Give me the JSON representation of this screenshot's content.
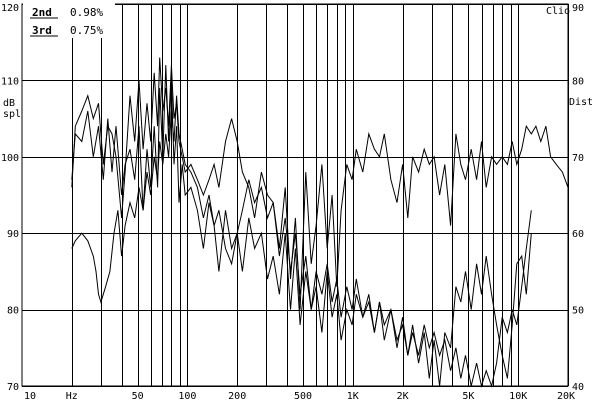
{
  "chart_data": {
    "type": "line",
    "title": "",
    "software_label": "Clio",
    "legend": [
      {
        "name": "2nd",
        "value": "0.98%"
      },
      {
        "name": "3rd",
        "value": "0.75%"
      }
    ],
    "left_axis": {
      "label_line1": "dB",
      "label_line2": "spl",
      "range": [
        70,
        120
      ],
      "ticks": [
        70,
        80,
        90,
        100,
        110,
        120
      ]
    },
    "right_axis": {
      "label": "Dist",
      "range": [
        40,
        90
      ],
      "ticks": [
        40,
        50,
        60,
        70,
        80,
        90
      ]
    },
    "x_axis": {
      "scale": "log",
      "unit": "Hz",
      "range": [
        10,
        20000
      ],
      "tick_labels": [
        {
          "f": 10,
          "t": "10"
        },
        {
          "f": 20,
          "t": "Hz"
        },
        {
          "f": 50,
          "t": "50"
        },
        {
          "f": 100,
          "t": "100"
        },
        {
          "f": 200,
          "t": "200"
        },
        {
          "f": 500,
          "t": "500"
        },
        {
          "f": 1000,
          "t": "1K"
        },
        {
          "f": 2000,
          "t": "2K"
        },
        {
          "f": 5000,
          "t": "5K"
        },
        {
          "f": 10000,
          "t": "10K"
        },
        {
          "f": 20000,
          "t": "20K"
        }
      ],
      "gridlines": [
        20,
        30,
        40,
        50,
        60,
        70,
        80,
        90,
        100,
        200,
        300,
        400,
        500,
        600,
        700,
        800,
        900,
        1000,
        2000,
        3000,
        4000,
        5000,
        6000,
        7000,
        8000,
        9000,
        10000,
        20000
      ]
    },
    "grid": true,
    "series": [
      {
        "axis": "left",
        "values": [
          [
            20,
            96
          ],
          [
            21,
            104
          ],
          [
            23,
            106
          ],
          [
            25,
            108
          ],
          [
            27,
            105
          ],
          [
            29,
            107
          ],
          [
            31,
            99
          ],
          [
            33,
            104
          ],
          [
            35,
            103
          ],
          [
            37,
            100
          ],
          [
            40,
            92
          ],
          [
            42,
            98
          ],
          [
            45,
            108
          ],
          [
            48,
            102
          ],
          [
            51,
            110
          ],
          [
            54,
            101
          ],
          [
            57,
            107
          ],
          [
            60,
            102
          ],
          [
            63,
            111
          ],
          [
            66,
            104
          ],
          [
            68,
            113
          ],
          [
            71,
            106
          ],
          [
            74,
            109
          ],
          [
            77,
            104
          ],
          [
            80,
            112
          ],
          [
            83,
            105
          ],
          [
            86,
            107
          ],
          [
            89,
            102
          ],
          [
            93,
            100
          ],
          [
            97,
            98
          ],
          [
            105,
            99
          ],
          [
            115,
            97
          ],
          [
            125,
            95
          ],
          [
            135,
            97
          ],
          [
            145,
            99
          ],
          [
            155,
            96
          ],
          [
            170,
            102
          ],
          [
            185,
            105
          ],
          [
            200,
            102
          ],
          [
            215,
            98
          ],
          [
            235,
            96
          ],
          [
            255,
            92
          ],
          [
            280,
            98
          ],
          [
            305,
            95
          ],
          [
            330,
            94
          ],
          [
            360,
            88
          ],
          [
            390,
            96
          ],
          [
            420,
            84
          ],
          [
            450,
            92
          ],
          [
            480,
            80
          ],
          [
            520,
            98
          ],
          [
            560,
            86
          ],
          [
            600,
            91
          ],
          [
            650,
            99
          ],
          [
            700,
            88
          ],
          [
            750,
            95
          ],
          [
            800,
            83
          ],
          [
            850,
            93
          ],
          [
            920,
            99
          ],
          [
            990,
            97
          ],
          [
            1050,
            101
          ],
          [
            1150,
            98
          ],
          [
            1250,
            103
          ],
          [
            1350,
            101
          ],
          [
            1450,
            100
          ],
          [
            1550,
            103
          ],
          [
            1700,
            97
          ],
          [
            1850,
            94
          ],
          [
            2000,
            99
          ],
          [
            2150,
            92
          ],
          [
            2300,
            100
          ],
          [
            2500,
            98
          ],
          [
            2700,
            101
          ],
          [
            2900,
            99
          ],
          [
            3100,
            100
          ],
          [
            3350,
            95
          ],
          [
            3600,
            99
          ],
          [
            3900,
            91
          ],
          [
            4200,
            103
          ],
          [
            4500,
            99
          ],
          [
            4800,
            97
          ],
          [
            5200,
            101
          ],
          [
            5600,
            97
          ],
          [
            6000,
            102
          ],
          [
            6400,
            96
          ],
          [
            6900,
            100
          ],
          [
            7400,
            99
          ],
          [
            8000,
            100
          ],
          [
            8600,
            99
          ],
          [
            9200,
            102
          ],
          [
            9800,
            99
          ],
          [
            10500,
            101
          ],
          [
            11200,
            104
          ],
          [
            12000,
            103
          ],
          [
            12800,
            104
          ],
          [
            13700,
            102
          ],
          [
            14700,
            104
          ],
          [
            15700,
            100
          ],
          [
            17000,
            99
          ],
          [
            18500,
            98
          ],
          [
            20000,
            96
          ]
        ]
      },
      {
        "axis": "left",
        "values": [
          [
            20,
            97
          ],
          [
            21,
            103
          ],
          [
            23,
            102
          ],
          [
            25,
            106
          ],
          [
            27,
            100
          ],
          [
            29,
            104
          ],
          [
            31,
            97
          ],
          [
            33,
            105
          ],
          [
            35,
            98
          ],
          [
            37,
            104
          ],
          [
            40,
            95
          ],
          [
            42,
            99
          ],
          [
            45,
            101
          ],
          [
            48,
            97
          ],
          [
            51,
            104
          ],
          [
            54,
            93
          ],
          [
            57,
            101
          ],
          [
            60,
            96
          ],
          [
            63,
            104
          ],
          [
            66,
            96
          ],
          [
            68,
            109
          ],
          [
            71,
            100
          ],
          [
            74,
            112
          ],
          [
            77,
            102
          ],
          [
            80,
            110
          ],
          [
            83,
            99
          ],
          [
            86,
            104
          ],
          [
            89,
            94
          ],
          [
            93,
            99
          ],
          [
            97,
            95
          ],
          [
            105,
            96
          ],
          [
            115,
            93
          ],
          [
            125,
            88
          ],
          [
            135,
            94
          ],
          [
            145,
            91
          ],
          [
            155,
            85
          ],
          [
            170,
            93
          ],
          [
            185,
            88
          ],
          [
            200,
            90
          ],
          [
            215,
            85
          ],
          [
            235,
            92
          ],
          [
            255,
            88
          ],
          [
            280,
            90
          ],
          [
            305,
            84
          ],
          [
            330,
            87
          ],
          [
            360,
            82
          ],
          [
            390,
            90
          ],
          [
            420,
            80
          ],
          [
            450,
            88
          ],
          [
            480,
            78
          ],
          [
            520,
            85
          ],
          [
            560,
            80
          ],
          [
            600,
            83
          ],
          [
            650,
            77
          ],
          [
            700,
            85
          ],
          [
            750,
            79
          ],
          [
            800,
            82
          ],
          [
            850,
            76
          ],
          [
            920,
            80
          ],
          [
            990,
            78
          ],
          [
            1050,
            82
          ],
          [
            1150,
            79
          ],
          [
            1250,
            81
          ],
          [
            1350,
            77
          ],
          [
            1450,
            81
          ],
          [
            1550,
            78
          ],
          [
            1700,
            80
          ],
          [
            1850,
            76
          ],
          [
            2000,
            78
          ],
          [
            2150,
            74
          ],
          [
            2300,
            77
          ],
          [
            2500,
            74
          ],
          [
            2700,
            78
          ],
          [
            2900,
            75
          ],
          [
            3100,
            77
          ],
          [
            3350,
            74
          ],
          [
            3600,
            76
          ],
          [
            3900,
            72
          ],
          [
            4200,
            75
          ],
          [
            4500,
            71
          ],
          [
            4800,
            74
          ],
          [
            5200,
            70
          ],
          [
            5600,
            73
          ],
          [
            6000,
            70
          ],
          [
            6400,
            72
          ],
          [
            6900,
            70
          ],
          [
            7400,
            73
          ],
          [
            8000,
            79
          ],
          [
            8600,
            77
          ],
          [
            9200,
            80
          ],
          [
            9800,
            78
          ],
          [
            10500,
            83
          ],
          [
            11200,
            88
          ],
          [
            12000,
            93
          ]
        ]
      },
      {
        "axis": "right",
        "values": [
          [
            20,
            58
          ],
          [
            21,
            59
          ],
          [
            23,
            60
          ],
          [
            25,
            59
          ],
          [
            27,
            57
          ],
          [
            28,
            55
          ],
          [
            29,
            52
          ],
          [
            30,
            51
          ],
          [
            32,
            53
          ],
          [
            34,
            55
          ],
          [
            36,
            60
          ],
          [
            38,
            63
          ],
          [
            40,
            57
          ],
          [
            42,
            61
          ],
          [
            45,
            64
          ],
          [
            48,
            62
          ],
          [
            51,
            66
          ],
          [
            54,
            63
          ],
          [
            57,
            68
          ],
          [
            60,
            65
          ],
          [
            63,
            70
          ],
          [
            66,
            67
          ],
          [
            68,
            72
          ],
          [
            71,
            69
          ],
          [
            74,
            73
          ],
          [
            77,
            70
          ],
          [
            80,
            76
          ],
          [
            83,
            72
          ],
          [
            86,
            78
          ],
          [
            89,
            73
          ],
          [
            93,
            71
          ],
          [
            97,
            69
          ],
          [
            105,
            68
          ],
          [
            115,
            66
          ],
          [
            125,
            62
          ],
          [
            135,
            65
          ],
          [
            145,
            61
          ],
          [
            155,
            63
          ],
          [
            170,
            58
          ],
          [
            185,
            56
          ],
          [
            200,
            60
          ],
          [
            215,
            63
          ],
          [
            235,
            67
          ],
          [
            255,
            64
          ],
          [
            280,
            66
          ],
          [
            305,
            62
          ],
          [
            330,
            64
          ],
          [
            360,
            57
          ],
          [
            390,
            62
          ],
          [
            420,
            55
          ],
          [
            450,
            60
          ],
          [
            480,
            52
          ],
          [
            520,
            57
          ],
          [
            560,
            50
          ],
          [
            600,
            55
          ],
          [
            650,
            52
          ],
          [
            700,
            56
          ],
          [
            750,
            51
          ],
          [
            800,
            54
          ],
          [
            850,
            49
          ],
          [
            920,
            53
          ],
          [
            990,
            50
          ],
          [
            1050,
            54
          ],
          [
            1150,
            49
          ],
          [
            1250,
            52
          ],
          [
            1350,
            47
          ],
          [
            1450,
            51
          ],
          [
            1550,
            46
          ],
          [
            1700,
            50
          ],
          [
            1850,
            45
          ],
          [
            2000,
            49
          ],
          [
            2150,
            44
          ],
          [
            2300,
            48
          ],
          [
            2500,
            43
          ],
          [
            2700,
            47
          ],
          [
            2900,
            41
          ],
          [
            3100,
            46
          ],
          [
            3350,
            40
          ],
          [
            3600,
            47
          ],
          [
            3900,
            45
          ],
          [
            4200,
            53
          ],
          [
            4500,
            51
          ],
          [
            4800,
            55
          ],
          [
            5200,
            50
          ],
          [
            5600,
            56
          ],
          [
            6000,
            52
          ],
          [
            6400,
            57
          ],
          [
            6900,
            52
          ],
          [
            7400,
            48
          ],
          [
            8000,
            44
          ],
          [
            8600,
            41
          ],
          [
            9200,
            48
          ],
          [
            9800,
            56
          ],
          [
            10500,
            57
          ],
          [
            11200,
            52
          ],
          [
            12000,
            60
          ]
        ]
      }
    ]
  }
}
